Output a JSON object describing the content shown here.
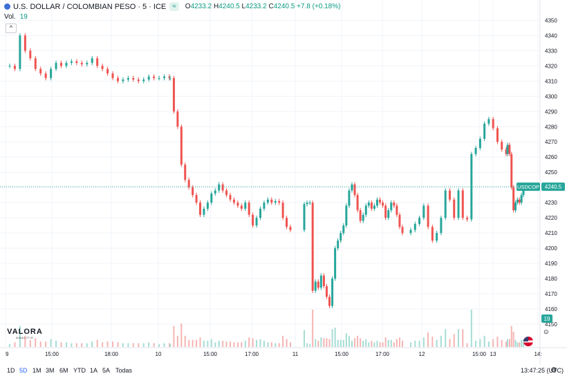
{
  "header": {
    "title": "U.S. DOLLAR / COLOMBIAN PESO · 5 · ICE",
    "compare_badge": "≈",
    "ohlc": {
      "o_label": "O",
      "o_value": "4233.2",
      "h_label": "H",
      "h_value": "4240.5",
      "l_label": "L",
      "l_value": "4233.2",
      "c_label": "C",
      "c_value": "4240.5",
      "change": "+7.8 (+0.18%)"
    }
  },
  "volume_legend": {
    "label": "Vol.",
    "value": "19"
  },
  "collapse_icon": "^",
  "logo": {
    "name": "VALORA",
    "sub": "ANALITIK"
  },
  "price_tag": {
    "symbol": "USDCOP",
    "value": "4240.5"
  },
  "volume_tag": "19",
  "colors": {
    "up": "#26a69a",
    "down": "#ef5350",
    "up_text": "#089981",
    "axis_text": "#131722",
    "grid": "#f0f3fa"
  },
  "bottom_bar": {
    "ranges": [
      "1D",
      "5D",
      "1M",
      "3M",
      "6M",
      "YTD",
      "1A",
      "5A",
      "Todas"
    ],
    "active_range": "5D",
    "clock": "13:47:25 (UTC)",
    "settings_icon": "gear-icon"
  },
  "chart_data": {
    "type": "candlestick",
    "symbol": "USDCOP",
    "interval": "5",
    "y_ticks": [
      4150,
      4160,
      4170,
      4180,
      4190,
      4200,
      4210,
      4220,
      4230,
      4240,
      4250,
      4260,
      4270,
      4280,
      4290,
      4300,
      4310,
      4320,
      4330,
      4340,
      4350
    ],
    "ylim": [
      4145,
      4352
    ],
    "x_ticks": [
      "9",
      "15:00",
      "18:00",
      "10",
      "15:00",
      "17:00",
      "11",
      "15:00",
      "17:00",
      "12",
      "15:00",
      "13",
      "14:"
    ],
    "last_price": 4240.5,
    "segments": [
      {
        "day": "9",
        "points": [
          4320,
          4318,
          4340,
          4330,
          4325,
          4318,
          4315,
          4312,
          4318,
          4322,
          4320,
          4322,
          4323,
          4322,
          4321,
          4322,
          4325,
          4320,
          4318,
          4315,
          4312,
          4310,
          4311,
          4312,
          4311,
          4310,
          4311,
          4313,
          4312,
          4312,
          4313,
          4312
        ]
      },
      {
        "day": "10",
        "points": [
          4312,
          4290,
          4280,
          4255,
          4245,
          4240,
          4235,
          4230,
          4222,
          4226,
          4230,
          4236,
          4238,
          4242,
          4238,
          4235,
          4232,
          4230,
          4228,
          4226,
          4230,
          4222,
          4215,
          4220,
          4226,
          4230,
          4232,
          4230,
          4231,
          4230,
          4220,
          4214,
          4212
        ]
      },
      {
        "day": "11",
        "points": [
          4229,
          4230,
          4230,
          4172,
          4178,
          4174,
          4182,
          4175,
          4168,
          4162,
          4180,
          4200,
          4205,
          4210,
          4215,
          4228,
          4238,
          4242,
          4235,
          4225,
          4218,
          4222,
          4228,
          4230,
          4226,
          4228,
          4232,
          4230,
          4228,
          4220,
          4225,
          4230,
          4228,
          4222,
          4214,
          4210
        ]
      },
      {
        "day": "12",
        "points": [
          4212,
          4216,
          4220,
          4228,
          4214,
          4205,
          4210,
          4220,
          4238,
          4232,
          4220,
          4238,
          4220,
          4219,
          4262,
          4266,
          4272,
          4282,
          4285,
          4279,
          4270,
          4265,
          4262
        ]
      },
      {
        "day": "13",
        "points": [
          4268,
          4262,
          4240,
          4225,
          4230,
          4232,
          4230,
          4235,
          4240.5
        ]
      }
    ],
    "volume_ylim": [
      0,
      100
    ]
  }
}
